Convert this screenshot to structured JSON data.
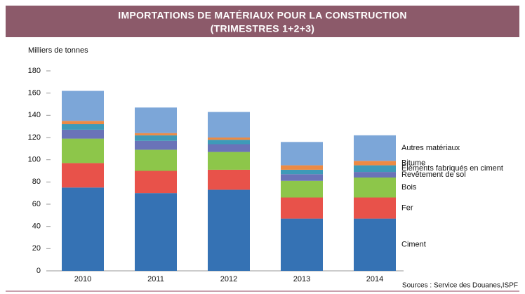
{
  "chart_data": {
    "type": "stacked-bar",
    "title": "IMPORTATIONS DE MATÉRIAUX POUR LA CONSTRUCTION",
    "subtitle": "(TRIMESTRES 1+2+3)",
    "y_label": "Milliers de tonnes",
    "source": "Sources : Service des Douanes,ISPF",
    "categories": [
      "2010",
      "2011",
      "2012",
      "2013",
      "2014"
    ],
    "ylim": [
      0,
      180
    ],
    "yticks": [
      0,
      20,
      40,
      60,
      80,
      100,
      120,
      140,
      160,
      180
    ],
    "series": [
      {
        "name": "Ciment",
        "color": "#3572b4",
        "values": [
          75,
          70,
          73,
          47,
          47
        ]
      },
      {
        "name": "Fer",
        "color": "#e8524a",
        "values": [
          22,
          20,
          18,
          19,
          19
        ]
      },
      {
        "name": "Bois",
        "color": "#8dc64a",
        "values": [
          22,
          19,
          16,
          15,
          18
        ]
      },
      {
        "name": "Revêtement de sol",
        "color": "#6a73b8",
        "values": [
          8,
          8,
          7,
          6,
          5
        ]
      },
      {
        "name": "Éléments fabriqués en ciment",
        "color": "#3e9ab8",
        "values": [
          5,
          5,
          4,
          4,
          6
        ]
      },
      {
        "name": "Bitume",
        "color": "#ec8a44",
        "values": [
          3,
          2,
          2,
          4,
          4
        ]
      },
      {
        "name": "Autres matériaux",
        "color": "#7ca6d8",
        "values": [
          27,
          23,
          23,
          21,
          23
        ]
      }
    ]
  }
}
